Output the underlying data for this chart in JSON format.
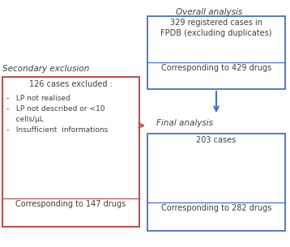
{
  "background_color": "#ffffff",
  "overall_label": "Overall analysis",
  "secondary_label": "Secondary exclusion",
  "final_label": "Final analysis",
  "box1_top": [
    "329 registered cases in",
    "FPDB (excluding duplicates)"
  ],
  "box1_bottom": "Corresponding to 429 drugs",
  "box2_top": "203 cases",
  "box2_bottom": "Corresponding to 282 drugs",
  "left_top_text": "126 cases excluded :",
  "left_bullets": [
    "-   LP not realised",
    "-   LP not described or <10\n    cells/μL",
    "-   Insufficient  informations"
  ],
  "left_bottom": "Corresponding to 147 drugs",
  "blue": "#4472C4",
  "red": "#C0504D",
  "dark": "#404040"
}
